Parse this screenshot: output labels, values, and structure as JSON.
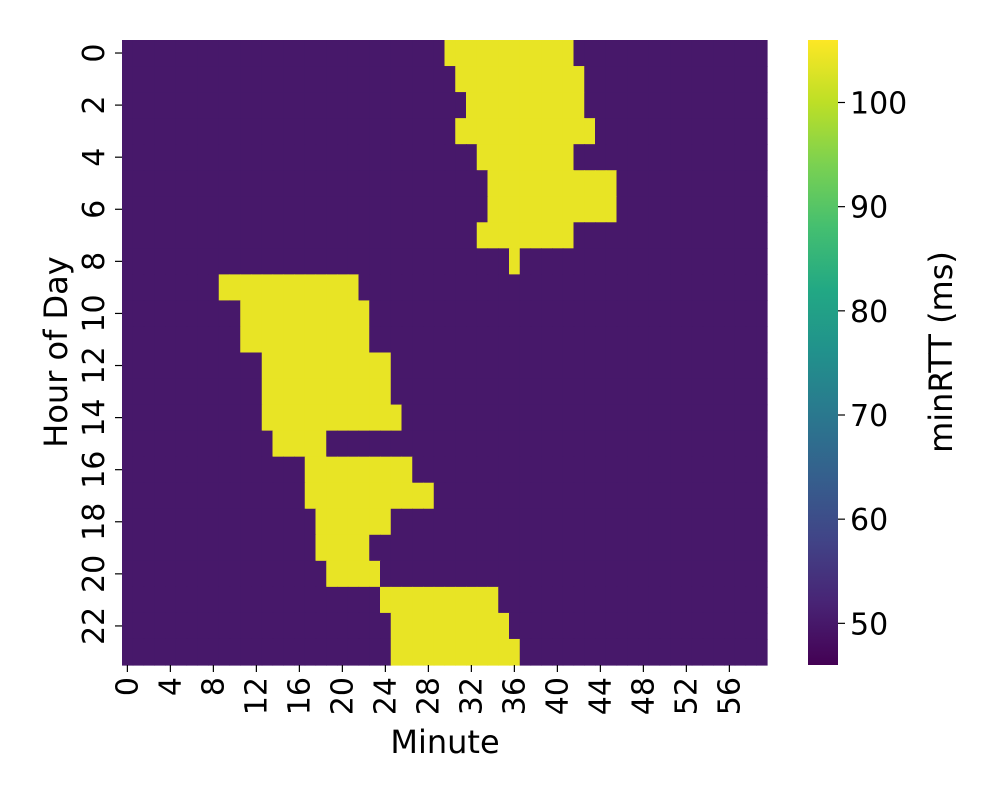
{
  "chart_data": {
    "type": "heatmap",
    "title": "",
    "xlabel": "Minute",
    "ylabel": "Hour of Day",
    "x_range": [
      0,
      59
    ],
    "y_range": [
      0,
      23
    ],
    "x_tick_labels": [
      "0",
      "4",
      "8",
      "12",
      "16",
      "20",
      "24",
      "28",
      "32",
      "36",
      "40",
      "44",
      "48",
      "52",
      "56"
    ],
    "y_tick_labels": [
      "0",
      "2",
      "4",
      "6",
      "8",
      "10",
      "12",
      "14",
      "16",
      "18",
      "20",
      "22"
    ],
    "colormap": "viridis",
    "colorbar": {
      "label": "minRTT (ms)",
      "range": [
        46,
        106
      ],
      "tick_labels": [
        "50",
        "60",
        "70",
        "80",
        "90",
        "100"
      ]
    },
    "low_value_ms": 50,
    "high_value_ms": 104,
    "high_latency_windows": [
      {
        "hours": [
          0,
          0
        ],
        "start_minute": 30,
        "end_minute": 41
      },
      {
        "hours": [
          1,
          1
        ],
        "start_minute": 31,
        "end_minute": 42
      },
      {
        "hours": [
          2,
          2
        ],
        "start_minute": 32,
        "end_minute": 42
      },
      {
        "hours": [
          3,
          3
        ],
        "start_minute": 31,
        "end_minute": 43
      },
      {
        "hours": [
          4,
          4
        ],
        "start_minute": 33,
        "end_minute": 41
      },
      {
        "hours": [
          5,
          5
        ],
        "start_minute": 34,
        "end_minute": 45
      },
      {
        "hours": [
          6,
          6
        ],
        "start_minute": 34,
        "end_minute": 45
      },
      {
        "hours": [
          7,
          7
        ],
        "start_minute": 33,
        "end_minute": 41
      },
      {
        "hours": [
          8,
          8
        ],
        "start_minute": 36,
        "end_minute": 36
      },
      {
        "hours": [
          9,
          9
        ],
        "start_minute": 9,
        "end_minute": 21
      },
      {
        "hours": [
          10,
          10
        ],
        "start_minute": 11,
        "end_minute": 22
      },
      {
        "hours": [
          11,
          11
        ],
        "start_minute": 11,
        "end_minute": 22
      },
      {
        "hours": [
          12,
          12
        ],
        "start_minute": 13,
        "end_minute": 24
      },
      {
        "hours": [
          13,
          13
        ],
        "start_minute": 13,
        "end_minute": 24
      },
      {
        "hours": [
          14,
          14
        ],
        "start_minute": 13,
        "end_minute": 25
      },
      {
        "hours": [
          15,
          15
        ],
        "start_minute": 14,
        "end_minute": 18
      },
      {
        "hours": [
          16,
          16
        ],
        "start_minute": 17,
        "end_minute": 26
      },
      {
        "hours": [
          17,
          17
        ],
        "start_minute": 17,
        "end_minute": 28
      },
      {
        "hours": [
          18,
          18
        ],
        "start_minute": 18,
        "end_minute": 24
      },
      {
        "hours": [
          19,
          19
        ],
        "start_minute": 18,
        "end_minute": 22
      },
      {
        "hours": [
          20,
          20
        ],
        "start_minute": 19,
        "end_minute": 23
      },
      {
        "hours": [
          21,
          21
        ],
        "start_minute": 24,
        "end_minute": 34
      },
      {
        "hours": [
          22,
          22
        ],
        "start_minute": 25,
        "end_minute": 35
      },
      {
        "hours": [
          23,
          23
        ],
        "start_minute": 25,
        "end_minute": 36
      }
    ]
  }
}
